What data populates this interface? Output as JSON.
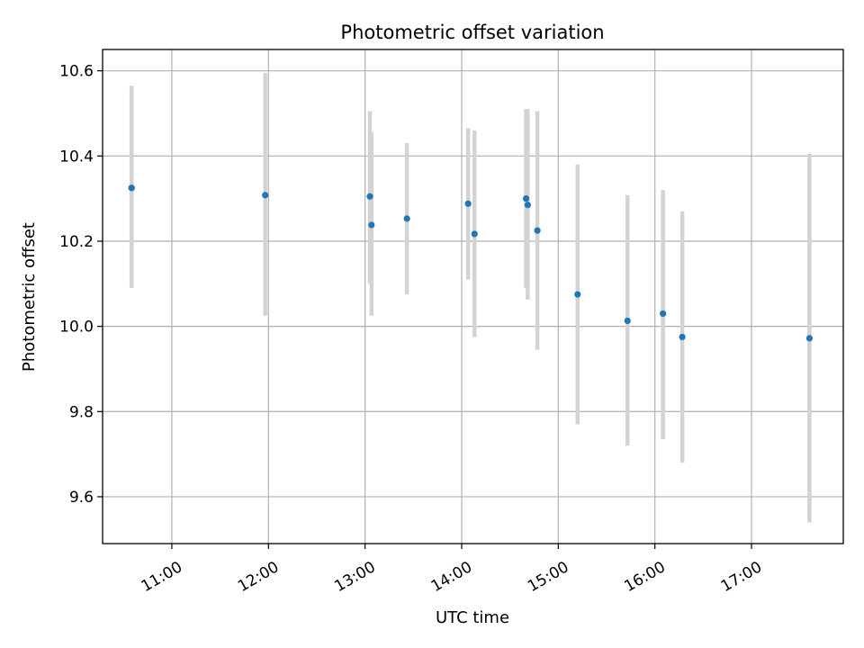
{
  "chart_data": {
    "type": "scatter",
    "title": "Photometric offset variation",
    "xlabel": "UTC time",
    "ylabel": "Photometric offset",
    "grid": true,
    "x_is_time": true,
    "xlim": [
      "10:17",
      "17:57"
    ],
    "ylim": [
      9.49,
      10.65
    ],
    "xticks": [
      "11:00",
      "12:00",
      "13:00",
      "14:00",
      "15:00",
      "16:00",
      "17:00"
    ],
    "yticks": [
      9.6,
      9.8,
      10.0,
      10.2,
      10.4,
      10.6
    ],
    "colors": {
      "point": "#1f77b4",
      "errorbar": "#d3d3d3",
      "grid": "#b0b0b0"
    },
    "series": [
      {
        "points": [
          {
            "x": "10:35",
            "y": 10.325,
            "yerr_low": 10.09,
            "yerr_high": 10.565
          },
          {
            "x": "10:35",
            "y": 10.325,
            "yerr_low": 10.1,
            "yerr_high": 10.55
          },
          {
            "x": "11:58",
            "y": 10.308,
            "yerr_low": 10.025,
            "yerr_high": 10.595
          },
          {
            "x": "13:03",
            "y": 10.305,
            "yerr_low": 10.1,
            "yerr_high": 10.505
          },
          {
            "x": "13:04",
            "y": 10.238,
            "yerr_low": 10.025,
            "yerr_high": 10.455
          },
          {
            "x": "13:26",
            "y": 10.253,
            "yerr_low": 10.075,
            "yerr_high": 10.43
          },
          {
            "x": "14:04",
            "y": 10.288,
            "yerr_low": 10.11,
            "yerr_high": 10.465
          },
          {
            "x": "14:08",
            "y": 10.217,
            "yerr_low": 9.975,
            "yerr_high": 10.46
          },
          {
            "x": "14:40",
            "y": 10.3,
            "yerr_low": 10.09,
            "yerr_high": 10.51
          },
          {
            "x": "14:41",
            "y": 10.285,
            "yerr_low": 10.063,
            "yerr_high": 10.51
          },
          {
            "x": "14:47",
            "y": 10.225,
            "yerr_low": 9.945,
            "yerr_high": 10.505
          },
          {
            "x": "15:12",
            "y": 10.075,
            "yerr_low": 9.77,
            "yerr_high": 10.38
          },
          {
            "x": "15:43",
            "y": 10.013,
            "yerr_low": 9.72,
            "yerr_high": 10.308
          },
          {
            "x": "16:05",
            "y": 10.03,
            "yerr_low": 9.735,
            "yerr_high": 10.32
          },
          {
            "x": "16:17",
            "y": 9.975,
            "yerr_low": 9.68,
            "yerr_high": 10.27
          },
          {
            "x": "17:36",
            "y": 9.972,
            "yerr_low": 9.54,
            "yerr_high": 10.405
          }
        ]
      }
    ]
  }
}
